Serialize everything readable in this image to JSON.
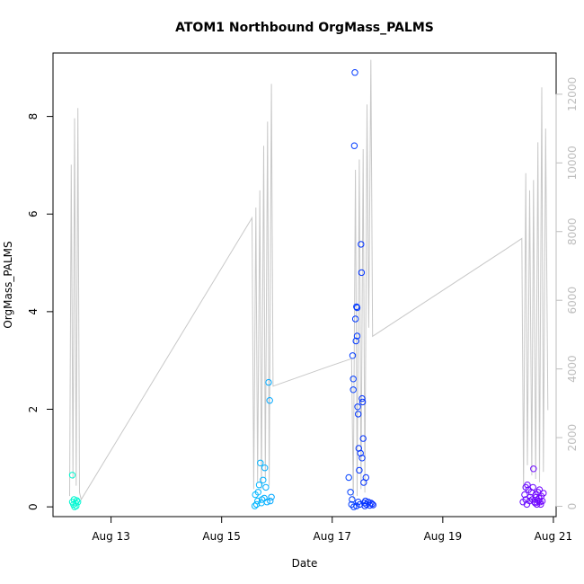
{
  "chart_data": {
    "type": "scatter",
    "title": "ATOM1 Northbound OrgMass_PALMS",
    "xlabel": "Date",
    "ylabel": "OrgMass_PALMS",
    "y2label": "",
    "x_ticks": [
      "Aug 13",
      "Aug 15",
      "Aug 17",
      "Aug 19",
      "Aug 21"
    ],
    "x_tick_days": [
      13,
      15,
      17,
      19,
      21
    ],
    "xlim_days": [
      11.95,
      21.05
    ],
    "y_ticks": [
      0,
      2,
      4,
      6,
      8
    ],
    "ylim": [
      -0.2,
      9.3
    ],
    "y2_ticks": [
      0,
      2000,
      4000,
      6000,
      8000,
      10000,
      12000
    ],
    "y2lim": [
      -300,
      13200
    ],
    "grid": false,
    "legend": "none",
    "colors": {
      "background_line": "#c8c8c8",
      "right_axis": "#bdbdbd",
      "scatter_start": "#00ffcc",
      "scatter_mid1": "#00b4ff",
      "scatter_mid2": "#0033ff",
      "scatter_end": "#7a00ff"
    },
    "background_series": {
      "name": "",
      "axis": "right",
      "points": [
        [
          12.25,
          300
        ],
        [
          12.28,
          9950
        ],
        [
          12.31,
          800
        ],
        [
          12.34,
          11300
        ],
        [
          12.37,
          600
        ],
        [
          12.4,
          11600
        ],
        [
          12.43,
          400
        ],
        [
          12.46,
          200
        ],
        [
          15.55,
          8400
        ],
        [
          15.58,
          500
        ],
        [
          15.62,
          8700
        ],
        [
          15.65,
          700
        ],
        [
          15.69,
          9200
        ],
        [
          15.72,
          500
        ],
        [
          15.76,
          10500
        ],
        [
          15.79,
          800
        ],
        [
          15.83,
          11200
        ],
        [
          15.86,
          600
        ],
        [
          15.9,
          12300
        ],
        [
          15.93,
          3500
        ],
        [
          16.9,
          4050
        ],
        [
          17.35,
          4300
        ],
        [
          17.38,
          200
        ],
        [
          17.42,
          9800
        ],
        [
          17.45,
          300
        ],
        [
          17.49,
          10100
        ],
        [
          17.52,
          500
        ],
        [
          17.56,
          10400
        ],
        [
          17.59,
          400
        ],
        [
          17.63,
          11700
        ],
        [
          17.66,
          5200
        ],
        [
          17.7,
          13000
        ],
        [
          17.73,
          4950
        ],
        [
          20.15,
          7500
        ],
        [
          20.43,
          7800
        ],
        [
          20.46,
          500
        ],
        [
          20.5,
          9700
        ],
        [
          20.53,
          1200
        ],
        [
          20.57,
          9200
        ],
        [
          20.61,
          900
        ],
        [
          20.64,
          9500
        ],
        [
          20.68,
          800
        ],
        [
          20.72,
          10600
        ],
        [
          20.75,
          700
        ],
        [
          20.79,
          12200
        ],
        [
          20.82,
          1000
        ],
        [
          20.86,
          11000
        ],
        [
          20.9,
          2800
        ]
      ]
    },
    "scatter_series": {
      "name": "",
      "axis": "left",
      "points": [
        [
          12.3,
          0.65
        ],
        [
          12.3,
          0.1
        ],
        [
          12.32,
          0.05
        ],
        [
          12.34,
          0.0
        ],
        [
          12.36,
          0.08
        ],
        [
          12.38,
          0.13
        ],
        [
          12.4,
          0.1
        ],
        [
          12.33,
          0.15
        ],
        [
          12.37,
          0.02
        ],
        [
          15.6,
          0.02
        ],
        [
          15.63,
          0.05
        ],
        [
          15.66,
          0.3
        ],
        [
          15.68,
          0.45
        ],
        [
          15.7,
          0.9
        ],
        [
          15.73,
          0.15
        ],
        [
          15.75,
          0.55
        ],
        [
          15.78,
          0.8
        ],
        [
          15.8,
          0.4
        ],
        [
          15.82,
          0.1
        ],
        [
          15.85,
          2.55
        ],
        [
          15.87,
          2.18
        ],
        [
          15.9,
          0.2
        ],
        [
          15.65,
          0.12
        ],
        [
          15.72,
          0.08
        ],
        [
          15.88,
          0.12
        ],
        [
          15.61,
          0.25
        ],
        [
          15.77,
          0.18
        ],
        [
          17.3,
          0.6
        ],
        [
          17.33,
          0.3
        ],
        [
          17.36,
          0.15
        ],
        [
          17.38,
          2.62
        ],
        [
          17.4,
          7.4
        ],
        [
          17.41,
          8.9
        ],
        [
          17.42,
          3.85
        ],
        [
          17.43,
          3.4
        ],
        [
          17.44,
          4.1
        ],
        [
          17.45,
          3.5
        ],
        [
          17.46,
          2.05
        ],
        [
          17.47,
          1.9
        ],
        [
          17.48,
          1.2
        ],
        [
          17.49,
          0.75
        ],
        [
          17.5,
          0.05
        ],
        [
          17.51,
          1.1
        ],
        [
          17.52,
          5.38
        ],
        [
          17.53,
          4.8
        ],
        [
          17.54,
          2.22
        ],
        [
          17.55,
          2.15
        ],
        [
          17.56,
          1.4
        ],
        [
          17.57,
          0.5
        ],
        [
          17.58,
          0.08
        ],
        [
          17.59,
          0.02
        ],
        [
          17.6,
          0.12
        ],
        [
          17.62,
          0.05
        ],
        [
          17.65,
          0.1
        ],
        [
          17.68,
          0.03
        ],
        [
          17.7,
          0.08
        ],
        [
          17.72,
          0.06
        ],
        [
          17.74,
          0.04
        ],
        [
          17.39,
          0.0
        ],
        [
          17.44,
          0.02
        ],
        [
          17.47,
          0.1
        ],
        [
          17.35,
          0.05
        ],
        [
          17.37,
          3.1
        ],
        [
          17.45,
          4.08
        ],
        [
          17.38,
          2.4
        ],
        [
          17.54,
          1.0
        ],
        [
          17.61,
          0.6
        ],
        [
          20.45,
          0.1
        ],
        [
          20.48,
          0.25
        ],
        [
          20.5,
          0.4
        ],
        [
          20.53,
          0.45
        ],
        [
          20.55,
          0.35
        ],
        [
          20.58,
          0.2
        ],
        [
          20.6,
          0.3
        ],
        [
          20.62,
          0.15
        ],
        [
          20.64,
          0.78
        ],
        [
          20.66,
          0.1
        ],
        [
          20.68,
          0.25
        ],
        [
          20.7,
          0.05
        ],
        [
          20.72,
          0.3
        ],
        [
          20.74,
          0.18
        ],
        [
          20.76,
          0.1
        ],
        [
          20.78,
          0.22
        ],
        [
          20.8,
          0.12
        ],
        [
          20.82,
          0.28
        ],
        [
          20.5,
          0.15
        ],
        [
          20.57,
          0.12
        ],
        [
          20.63,
          0.4
        ],
        [
          20.69,
          0.2
        ],
        [
          20.75,
          0.35
        ],
        [
          20.52,
          0.05
        ],
        [
          20.67,
          0.08
        ],
        [
          20.73,
          0.12
        ],
        [
          20.77,
          0.05
        ]
      ]
    }
  }
}
